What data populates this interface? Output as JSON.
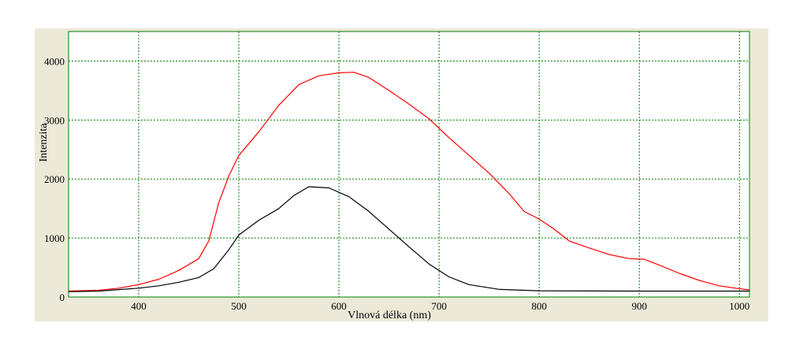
{
  "colors": {
    "background": "#ece9d8",
    "plot_background": "#ffffff",
    "frame": "#008000",
    "grid": "#008000",
    "series_1": "#ff0000",
    "series_2": "#000000"
  },
  "chart_data": {
    "type": "line",
    "title": "",
    "xlabel": "Vlnová délka (nm)",
    "ylabel": "Intenzita",
    "xlim": [
      330,
      1010
    ],
    "ylim": [
      0,
      4500
    ],
    "x_ticks": [
      400,
      500,
      600,
      700,
      800,
      900,
      1000
    ],
    "y_ticks": [
      0,
      1000,
      2000,
      3000,
      4000
    ],
    "grid": true,
    "legend": "none",
    "series": [
      {
        "color": "#ff0000",
        "points": [
          [
            330,
            100
          ],
          [
            360,
            115
          ],
          [
            380,
            150
          ],
          [
            400,
            210
          ],
          [
            420,
            300
          ],
          [
            440,
            450
          ],
          [
            460,
            650
          ],
          [
            470,
            950
          ],
          [
            480,
            1600
          ],
          [
            490,
            2050
          ],
          [
            500,
            2400
          ],
          [
            520,
            2800
          ],
          [
            540,
            3250
          ],
          [
            560,
            3600
          ],
          [
            580,
            3750
          ],
          [
            600,
            3800
          ],
          [
            615,
            3810
          ],
          [
            630,
            3720
          ],
          [
            650,
            3500
          ],
          [
            670,
            3270
          ],
          [
            690,
            3020
          ],
          [
            710,
            2700
          ],
          [
            730,
            2400
          ],
          [
            750,
            2100
          ],
          [
            770,
            1750
          ],
          [
            785,
            1450
          ],
          [
            800,
            1320
          ],
          [
            815,
            1150
          ],
          [
            830,
            950
          ],
          [
            850,
            830
          ],
          [
            870,
            720
          ],
          [
            890,
            650
          ],
          [
            905,
            640
          ],
          [
            920,
            540
          ],
          [
            940,
            400
          ],
          [
            960,
            280
          ],
          [
            980,
            190
          ],
          [
            1000,
            140
          ],
          [
            1010,
            120
          ]
        ]
      },
      {
        "color": "#000000",
        "points": [
          [
            330,
            90
          ],
          [
            360,
            100
          ],
          [
            380,
            125
          ],
          [
            400,
            150
          ],
          [
            420,
            190
          ],
          [
            440,
            250
          ],
          [
            460,
            330
          ],
          [
            475,
            480
          ],
          [
            490,
            800
          ],
          [
            500,
            1050
          ],
          [
            520,
            1300
          ],
          [
            540,
            1500
          ],
          [
            555,
            1720
          ],
          [
            570,
            1870
          ],
          [
            590,
            1850
          ],
          [
            610,
            1700
          ],
          [
            630,
            1450
          ],
          [
            650,
            1150
          ],
          [
            670,
            850
          ],
          [
            690,
            560
          ],
          [
            710,
            340
          ],
          [
            730,
            210
          ],
          [
            760,
            130
          ],
          [
            800,
            105
          ],
          [
            900,
            100
          ],
          [
            1010,
            100
          ]
        ]
      }
    ]
  }
}
